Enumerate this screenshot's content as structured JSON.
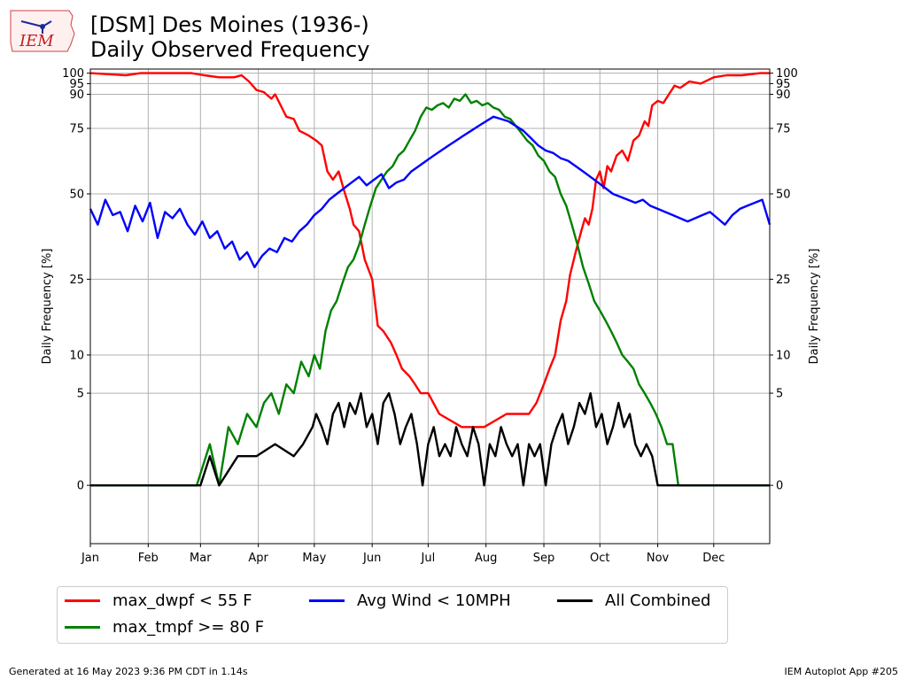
{
  "header": {
    "title_line1": "[DSM] Des Moines (1936-)",
    "title_line2": "Daily Observed Frequency",
    "logo_text": "IEM"
  },
  "footer": {
    "left": "Generated at 16 May 2023 9:36 PM CDT in 1.14s",
    "right": "IEM Autoplot App #205"
  },
  "colors": {
    "max_dwpf": "#ff0000",
    "max_tmpf": "#008000",
    "avg_wind": "#0000ff",
    "combined": "#000000",
    "grid": "#b0b0b0"
  },
  "chart_data": {
    "type": "line",
    "title": "[DSM] Des Moines (1936-) Daily Observed Frequency",
    "xlabel": "",
    "ylabel": "Daily Frequency [%]",
    "ylabel_right": "Daily Frequency [%]",
    "xlim": [
      1,
      365
    ],
    "ylim": [
      -2,
      102
    ],
    "y_scale": "square-root",
    "y_ticks": [
      0,
      5,
      10,
      25,
      50,
      75,
      90,
      95,
      100
    ],
    "x_ticks": [
      {
        "day": 1,
        "label": "Jan"
      },
      {
        "day": 32,
        "label": "Feb"
      },
      {
        "day": 60,
        "label": "Mar"
      },
      {
        "day": 91,
        "label": "Apr"
      },
      {
        "day": 121,
        "label": "May"
      },
      {
        "day": 152,
        "label": "Jun"
      },
      {
        "day": 182,
        "label": "Jul"
      },
      {
        "day": 213,
        "label": "Aug"
      },
      {
        "day": 244,
        "label": "Sep"
      },
      {
        "day": 274,
        "label": "Oct"
      },
      {
        "day": 305,
        "label": "Nov"
      },
      {
        "day": 335,
        "label": "Dec"
      }
    ],
    "grid": true,
    "legend_position": "bottom",
    "x_unit": "day of year",
    "series": [
      {
        "name": "max_dwpf < 55 F",
        "color_key": "max_dwpf",
        "x": [
          1,
          20,
          28,
          45,
          55,
          62,
          70,
          78,
          82,
          86,
          90,
          94,
          98,
          100,
          106,
          110,
          113,
          118,
          122,
          125,
          128,
          131,
          134,
          137,
          140,
          142,
          145,
          148,
          152,
          155,
          158,
          162,
          165,
          168,
          172,
          175,
          178,
          182,
          188,
          200,
          212,
          224,
          236,
          240,
          244,
          247,
          250,
          253,
          256,
          258,
          261,
          264,
          266,
          268,
          270,
          272,
          274,
          276,
          278,
          280,
          283,
          286,
          289,
          292,
          295,
          298,
          300,
          302,
          305,
          308,
          311,
          314,
          317,
          322,
          328,
          335,
          342,
          350,
          360,
          365
        ],
        "y": [
          100,
          99,
          100,
          100,
          100,
          99,
          98,
          98,
          99,
          96,
          92,
          91,
          88,
          90,
          80,
          79,
          74,
          72,
          70,
          68,
          58,
          55,
          58,
          51,
          45,
          40,
          38,
          30,
          25,
          15,
          14,
          12,
          10,
          8,
          7,
          6,
          5,
          5,
          3,
          2,
          2,
          3,
          3,
          4,
          6,
          8,
          10,
          16,
          20,
          26,
          32,
          38,
          42,
          40,
          45,
          55,
          58,
          52,
          60,
          58,
          64,
          66,
          62,
          70,
          72,
          78,
          76,
          85,
          87,
          86,
          90,
          94,
          93,
          96,
          95,
          98,
          99,
          99,
          100,
          100
        ]
      },
      {
        "name": "max_tmpf >= 80 F",
        "color_key": "max_tmpf",
        "x": [
          1,
          58,
          65,
          70,
          75,
          80,
          85,
          90,
          94,
          98,
          102,
          106,
          110,
          114,
          118,
          121,
          124,
          127,
          130,
          133,
          136,
          139,
          142,
          145,
          148,
          151,
          154,
          157,
          160,
          163,
          166,
          169,
          172,
          175,
          178,
          181,
          184,
          187,
          190,
          193,
          196,
          199,
          202,
          205,
          208,
          211,
          214,
          217,
          220,
          223,
          226,
          229,
          232,
          235,
          238,
          241,
          244,
          247,
          250,
          253,
          256,
          259,
          262,
          265,
          268,
          271,
          274,
          277,
          280,
          283,
          286,
          289,
          292,
          295,
          298,
          301,
          304,
          307,
          310,
          313,
          316,
          365
        ],
        "y": [
          0,
          0,
          1,
          0,
          2,
          1,
          3,
          2,
          4,
          5,
          3,
          6,
          5,
          9,
          7,
          10,
          8,
          14,
          18,
          20,
          24,
          28,
          30,
          34,
          40,
          46,
          52,
          55,
          58,
          60,
          64,
          66,
          70,
          74,
          80,
          84,
          83,
          85,
          86,
          84,
          88,
          87,
          90,
          86,
          87,
          85,
          86,
          84,
          83,
          80,
          79,
          76,
          73,
          70,
          68,
          64,
          62,
          58,
          56,
          50,
          46,
          40,
          34,
          28,
          24,
          20,
          18,
          16,
          14,
          12,
          10,
          9,
          8,
          6,
          5,
          4,
          3,
          2,
          1,
          1,
          0,
          0
        ]
      },
      {
        "name": "Avg Wind < 10MPH",
        "color_key": "avg_wind",
        "x": [
          1,
          5,
          9,
          13,
          17,
          21,
          25,
          29,
          33,
          37,
          41,
          45,
          49,
          53,
          57,
          61,
          65,
          69,
          73,
          77,
          81,
          85,
          89,
          93,
          97,
          101,
          105,
          109,
          113,
          117,
          121,
          125,
          129,
          133,
          137,
          141,
          145,
          149,
          153,
          157,
          161,
          165,
          169,
          173,
          177,
          181,
          185,
          189,
          193,
          197,
          201,
          205,
          209,
          213,
          217,
          221,
          225,
          229,
          233,
          237,
          241,
          245,
          249,
          253,
          257,
          261,
          265,
          269,
          273,
          277,
          281,
          285,
          289,
          293,
          297,
          301,
          305,
          309,
          313,
          317,
          321,
          325,
          329,
          333,
          337,
          341,
          345,
          349,
          353,
          357,
          361,
          365
        ],
        "y": [
          45,
          40,
          48,
          43,
          44,
          38,
          46,
          41,
          47,
          36,
          44,
          42,
          45,
          40,
          37,
          41,
          36,
          38,
          33,
          35,
          30,
          32,
          28,
          31,
          33,
          32,
          36,
          35,
          38,
          40,
          43,
          45,
          48,
          50,
          52,
          54,
          56,
          53,
          55,
          57,
          52,
          54,
          55,
          58,
          60,
          62,
          64,
          66,
          68,
          70,
          72,
          74,
          76,
          78,
          80,
          79,
          78,
          76,
          74,
          71,
          68,
          66,
          65,
          63,
          62,
          60,
          58,
          56,
          54,
          52,
          50,
          49,
          48,
          47,
          48,
          46,
          45,
          44,
          43,
          42,
          41,
          42,
          43,
          44,
          42,
          40,
          43,
          45,
          46,
          47,
          48,
          40
        ]
      },
      {
        "name": "All Combined",
        "color_key": "combined",
        "x": [
          1,
          60,
          65,
          70,
          80,
          90,
          100,
          110,
          115,
          120,
          122,
          125,
          128,
          131,
          134,
          137,
          140,
          143,
          146,
          149,
          152,
          155,
          158,
          161,
          164,
          167,
          170,
          173,
          176,
          179,
          182,
          185,
          188,
          191,
          194,
          197,
          200,
          203,
          206,
          209,
          212,
          215,
          218,
          221,
          224,
          227,
          230,
          233,
          236,
          239,
          242,
          245,
          248,
          251,
          254,
          257,
          260,
          263,
          266,
          269,
          272,
          275,
          278,
          281,
          284,
          287,
          290,
          293,
          296,
          299,
          302,
          305,
          310,
          365
        ],
        "y": [
          0,
          0,
          0.5,
          0,
          0.5,
          0.5,
          1,
          0.5,
          1,
          2,
          3,
          2,
          1,
          3,
          4,
          2,
          4,
          3,
          5,
          2,
          3,
          1,
          4,
          5,
          3,
          1,
          2,
          3,
          1,
          0,
          1,
          2,
          0.5,
          1,
          0.5,
          2,
          1,
          0.5,
          2,
          1,
          0,
          1,
          0.5,
          2,
          1,
          0.5,
          1,
          0,
          1,
          0.5,
          1,
          0,
          1,
          2,
          3,
          1,
          2,
          4,
          3,
          5,
          2,
          3,
          1,
          2,
          4,
          2,
          3,
          1,
          0.5,
          1,
          0.5,
          0,
          0,
          0
        ]
      }
    ]
  },
  "legend": {
    "items": [
      {
        "label": "max_dwpf < 55 F",
        "color_key": "max_dwpf"
      },
      {
        "label": "Avg Wind < 10MPH",
        "color_key": "avg_wind"
      },
      {
        "label": "All Combined",
        "color_key": "combined"
      },
      {
        "label": "max_tmpf >= 80 F",
        "color_key": "max_tmpf"
      }
    ]
  }
}
